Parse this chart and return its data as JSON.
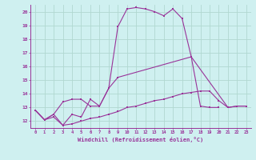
{
  "xlabel": "Windchill (Refroidissement éolien,°C)",
  "xlim": [
    -0.5,
    23.5
  ],
  "ylim": [
    11.5,
    20.5
  ],
  "xticks": [
    0,
    1,
    2,
    3,
    4,
    5,
    6,
    7,
    8,
    9,
    10,
    11,
    12,
    13,
    14,
    15,
    16,
    17,
    18,
    19,
    20,
    21,
    22,
    23
  ],
  "yticks": [
    12,
    13,
    14,
    15,
    16,
    17,
    18,
    19,
    20
  ],
  "bg_color": "#cff0f0",
  "line_color": "#993399",
  "grid_color": "#b0d8d0",
  "series": [
    {
      "x": [
        0,
        1,
        2,
        3,
        4,
        5,
        6,
        7,
        8,
        9,
        10,
        11,
        12,
        13,
        14,
        15,
        16,
        17,
        18,
        19,
        20
      ],
      "y": [
        12.8,
        12.1,
        12.5,
        11.7,
        12.5,
        12.3,
        13.6,
        13.1,
        14.4,
        18.9,
        20.2,
        20.3,
        20.2,
        20.0,
        19.7,
        20.2,
        19.5,
        16.7,
        13.1,
        13.0,
        13.0
      ]
    },
    {
      "x": [
        0,
        1,
        2,
        3,
        4,
        5,
        6,
        7,
        8,
        9,
        17,
        21,
        22,
        23
      ],
      "y": [
        12.8,
        12.1,
        12.5,
        13.4,
        13.6,
        13.6,
        13.1,
        13.1,
        14.4,
        15.2,
        16.7,
        13.0,
        13.1,
        13.1
      ]
    },
    {
      "x": [
        0,
        1,
        2,
        3,
        4,
        5,
        6,
        7,
        8,
        9,
        10,
        11,
        12,
        13,
        14,
        15,
        16,
        17,
        18,
        19,
        20,
        21,
        22,
        23
      ],
      "y": [
        12.8,
        12.1,
        12.3,
        11.7,
        11.8,
        12.0,
        12.2,
        12.3,
        12.5,
        12.7,
        13.0,
        13.1,
        13.3,
        13.5,
        13.6,
        13.8,
        14.0,
        14.1,
        14.2,
        14.2,
        13.5,
        13.0,
        13.1,
        13.1
      ]
    }
  ]
}
